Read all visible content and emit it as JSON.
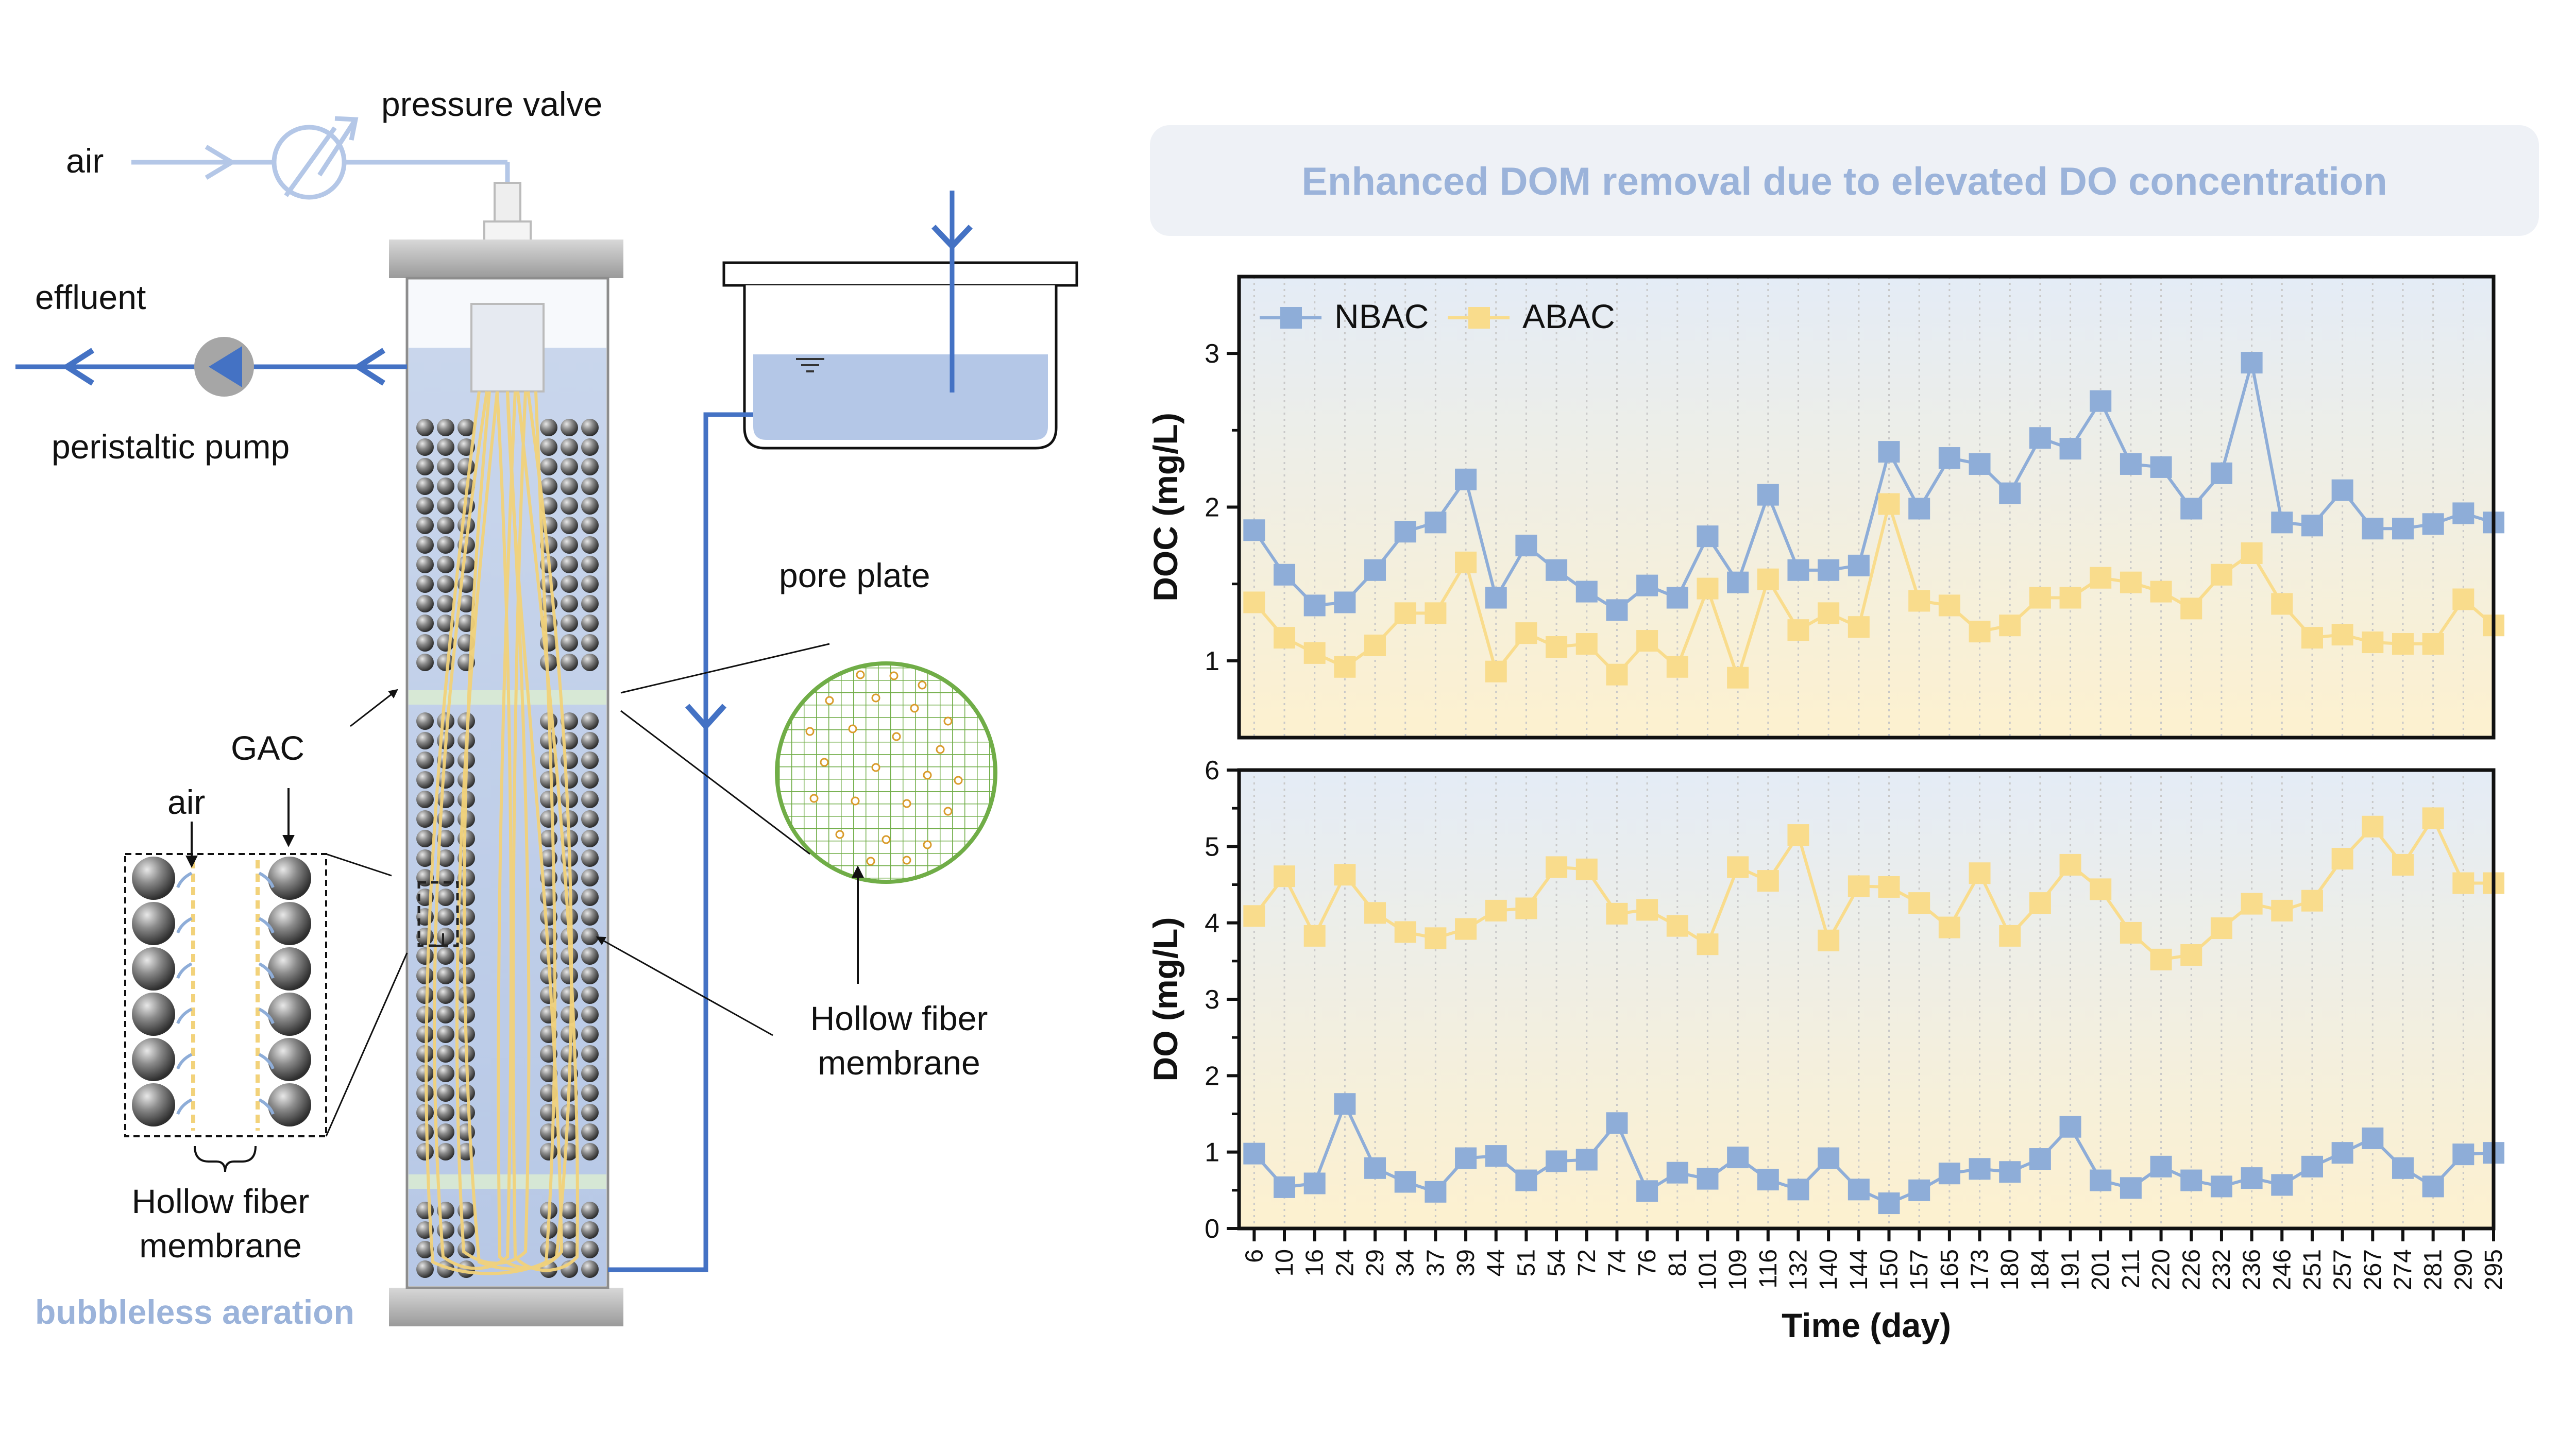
{
  "colors": {
    "nbac": "#8eadd8",
    "abac": "#f9dc8c",
    "pipe": "#4472c4",
    "pipe_light": "#b4c7e7",
    "water": "#b4c7e7",
    "fiber": "#f2d27a",
    "banner_bg": "#eef1f6",
    "banner_text": "#9bb3da",
    "pore_green": "#70ad47",
    "pore_dot": "#d99b2b",
    "gac": "#555555"
  },
  "diagram": {
    "labels": {
      "air_top": "air",
      "pressure_valve": "pressure valve",
      "effluent": "effluent",
      "peristaltic_pump": "peristaltic pump",
      "pore_plate": "pore plate",
      "gac": "GAC",
      "air_inset": "air",
      "hollow_fiber_right": "Hollow fiber membrane",
      "hollow_fiber_inset": "Hollow fiber membrane",
      "bubbleless_aeration": "bubbleless aeration"
    }
  },
  "banner": {
    "text": "Enhanced DOM removal due to elevated DO concentration"
  },
  "chart_data": [
    {
      "type": "line",
      "ylabel": "DOC (mg/L)",
      "xlabel": "Time (day)",
      "ylim": [
        0.5,
        3.5
      ],
      "yticks": [
        1,
        2,
        3
      ],
      "legend_position": "top-left",
      "grid": "vertical dotted",
      "categories": [
        "6",
        "10",
        "16",
        "24",
        "29",
        "34",
        "37",
        "39",
        "44",
        "51",
        "54",
        "72",
        "74",
        "76",
        "81",
        "101",
        "109",
        "116",
        "132",
        "140",
        "144",
        "150",
        "157",
        "165",
        "173",
        "180",
        "184",
        "191",
        "201",
        "211",
        "220",
        "226",
        "232",
        "236",
        "246",
        "251",
        "257",
        "267",
        "274",
        "281",
        "290",
        "295"
      ],
      "series": [
        {
          "name": "NBAC",
          "values": [
            1.85,
            1.56,
            1.36,
            1.38,
            1.59,
            1.84,
            1.9,
            2.18,
            1.41,
            1.75,
            1.59,
            1.45,
            1.33,
            1.49,
            1.41,
            1.81,
            1.51,
            2.08,
            1.59,
            1.59,
            1.62,
            2.36,
            1.99,
            2.32,
            2.28,
            2.09,
            2.45,
            2.38,
            2.69,
            2.28,
            2.26,
            1.99,
            2.22,
            2.94,
            1.9,
            1.88,
            2.11,
            1.86,
            1.86,
            1.89,
            1.96,
            1.9
          ]
        },
        {
          "name": "ABAC",
          "values": [
            1.38,
            1.15,
            1.05,
            0.96,
            1.1,
            1.31,
            1.31,
            1.64,
            0.93,
            1.18,
            1.09,
            1.11,
            0.91,
            1.13,
            0.96,
            1.47,
            0.89,
            1.53,
            1.2,
            1.31,
            1.22,
            2.02,
            1.39,
            1.36,
            1.19,
            1.23,
            1.41,
            1.41,
            1.54,
            1.51,
            1.45,
            1.34,
            1.56,
            1.7,
            1.37,
            1.15,
            1.17,
            1.12,
            1.11,
            1.11,
            1.4,
            1.23
          ]
        }
      ]
    },
    {
      "type": "line",
      "ylabel": "DO (mg/L)",
      "xlabel": "Time (day)",
      "ylim": [
        0,
        6
      ],
      "yticks": [
        0,
        1,
        2,
        3,
        4,
        5,
        6
      ],
      "grid": "vertical dotted",
      "categories": [
        "6",
        "10",
        "16",
        "24",
        "29",
        "34",
        "37",
        "39",
        "44",
        "51",
        "54",
        "72",
        "74",
        "76",
        "81",
        "101",
        "109",
        "116",
        "132",
        "140",
        "144",
        "150",
        "157",
        "165",
        "173",
        "180",
        "184",
        "191",
        "201",
        "211",
        "220",
        "226",
        "232",
        "236",
        "246",
        "251",
        "257",
        "267",
        "274",
        "281",
        "290",
        "295"
      ],
      "series": [
        {
          "name": "NBAC",
          "values": [
            0.98,
            0.54,
            0.59,
            1.63,
            0.79,
            0.61,
            0.48,
            0.92,
            0.95,
            0.63,
            0.88,
            0.9,
            1.38,
            0.49,
            0.73,
            0.65,
            0.93,
            0.64,
            0.51,
            0.92,
            0.51,
            0.33,
            0.5,
            0.72,
            0.78,
            0.74,
            0.91,
            1.33,
            0.63,
            0.53,
            0.81,
            0.63,
            0.55,
            0.66,
            0.57,
            0.81,
            0.99,
            1.18,
            0.79,
            0.55,
            0.97,
            0.99
          ]
        },
        {
          "name": "ABAC",
          "values": [
            4.09,
            4.61,
            3.83,
            4.63,
            4.13,
            3.88,
            3.8,
            3.92,
            4.16,
            4.19,
            4.73,
            4.7,
            4.12,
            4.17,
            3.96,
            3.72,
            4.73,
            4.55,
            5.15,
            3.77,
            4.48,
            4.47,
            4.26,
            3.94,
            4.65,
            3.83,
            4.26,
            4.76,
            4.44,
            3.87,
            3.52,
            3.58,
            3.93,
            4.25,
            4.16,
            4.29,
            4.84,
            5.26,
            4.76,
            5.37,
            4.52,
            4.52
          ]
        }
      ]
    }
  ]
}
